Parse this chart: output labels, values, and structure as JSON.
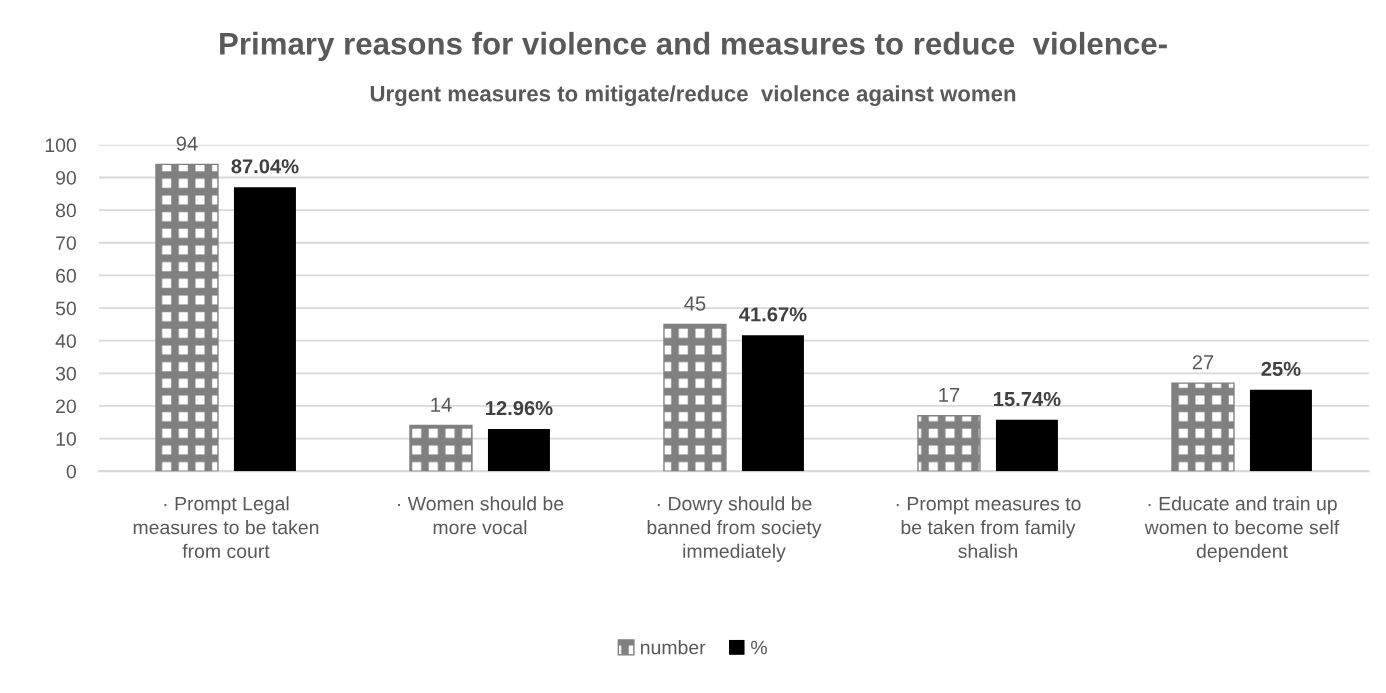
{
  "chart_data": {
    "type": "bar",
    "title": "Primary reasons for violence and measures to reduce  violence-",
    "subtitle": "Urgent measures to mitigate/reduce  violence against women",
    "categories": [
      "· Prompt Legal measures to be taken from court",
      "· Women should be more vocal",
      "· Dowry should be banned from society immediately",
      "· Prompt measures to be taken from family shalish",
      "· Educate and train up women to become self dependent"
    ],
    "series": [
      {
        "name": "number",
        "color": "#808080",
        "values": [
          94,
          14,
          45,
          17,
          27
        ],
        "value_labels": [
          "94",
          "14",
          "45",
          "17",
          "27"
        ]
      },
      {
        "name": "%",
        "color": "#000000",
        "values": [
          87.04,
          12.96,
          41.67,
          15.74,
          25
        ],
        "value_labels": [
          "87.04%",
          "12.96%",
          "41.67%",
          "15.74%",
          "25%"
        ]
      }
    ],
    "ylim": [
      0,
      100
    ],
    "yticks": [
      0,
      10,
      20,
      30,
      40,
      50,
      60,
      70,
      80,
      90,
      100
    ],
    "grid": "y",
    "legend": "bottom"
  }
}
